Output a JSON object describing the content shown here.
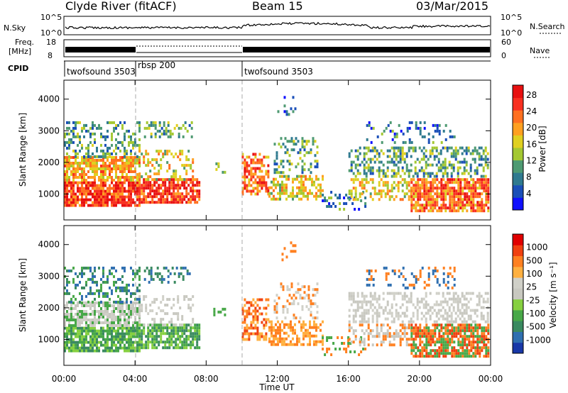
{
  "header": {
    "station": "Clyde River (fitACF)",
    "beam": "Beam 15",
    "date": "03/Mar/2015"
  },
  "strips": {
    "nsky_label": "N.Sky",
    "nsky_ticks": [
      "10^5",
      "10^0"
    ],
    "nsearch_label": "N.Search",
    "nsearch_ticks": [
      "10^5",
      "10^0"
    ],
    "freq_label_1": "Freq.",
    "freq_label_2": "[MHz]",
    "freq_ticks": [
      "18",
      "8"
    ],
    "nave_label": "Nave",
    "nave_ticks": [
      "60",
      "0"
    ],
    "cpid_label": "CPID",
    "cpid_segments": [
      {
        "label": "twofsound 3503",
        "start": 0,
        "end": 4
      },
      {
        "label": "rbsp 200",
        "start": 4,
        "end": 10
      },
      {
        "label": "twofsound 3503",
        "start": 10,
        "end": 24
      }
    ]
  },
  "chart_data": [
    {
      "type": "heatmap",
      "quantity": "power",
      "xlabel": "Time UT",
      "ylabel": "Slant Range [km]",
      "xlim": [
        0,
        24
      ],
      "ylim": [
        180,
        4600
      ],
      "xticks": [
        "00:00",
        "04:00",
        "08:00",
        "12:00",
        "16:00",
        "20:00",
        "00:00"
      ],
      "yticks": [
        "1000",
        "2000",
        "3000",
        "4000"
      ],
      "colorbar_label": "Power [dB]",
      "colorbar_ticks": [
        "4",
        "8",
        "12",
        "16",
        "20",
        "24",
        "28"
      ],
      "colorbar_colors": [
        "#1010ff",
        "#1a4fb8",
        "#2f7a8f",
        "#4e9a72",
        "#a4c832",
        "#e0d020",
        "#ffa020",
        "#ff7020",
        "#f83020",
        "#e81010"
      ]
    },
    {
      "type": "heatmap",
      "quantity": "velocity",
      "xlabel": "Time UT",
      "ylabel": "Slant Range [km]",
      "xlim": [
        0,
        24
      ],
      "ylim": [
        180,
        4600
      ],
      "xticks": [
        "00:00",
        "04:00",
        "08:00",
        "12:00",
        "16:00",
        "20:00",
        "00:00"
      ],
      "yticks": [
        "1000",
        "2000",
        "3000",
        "4000"
      ],
      "colorbar_label": "Velocity [m s⁻¹]",
      "colorbar_ticks": [
        "1000",
        "500",
        "100",
        "25",
        "-25",
        "-100",
        "-500",
        "-1000"
      ],
      "colorbar_colors": [
        "#1838a8",
        "#2f6fb0",
        "#3a8a60",
        "#48a848",
        "#86d040",
        "#c8c8c0",
        "#d0d0c8",
        "#ffb040",
        "#ff8020",
        "#f04010",
        "#e00000"
      ]
    }
  ]
}
